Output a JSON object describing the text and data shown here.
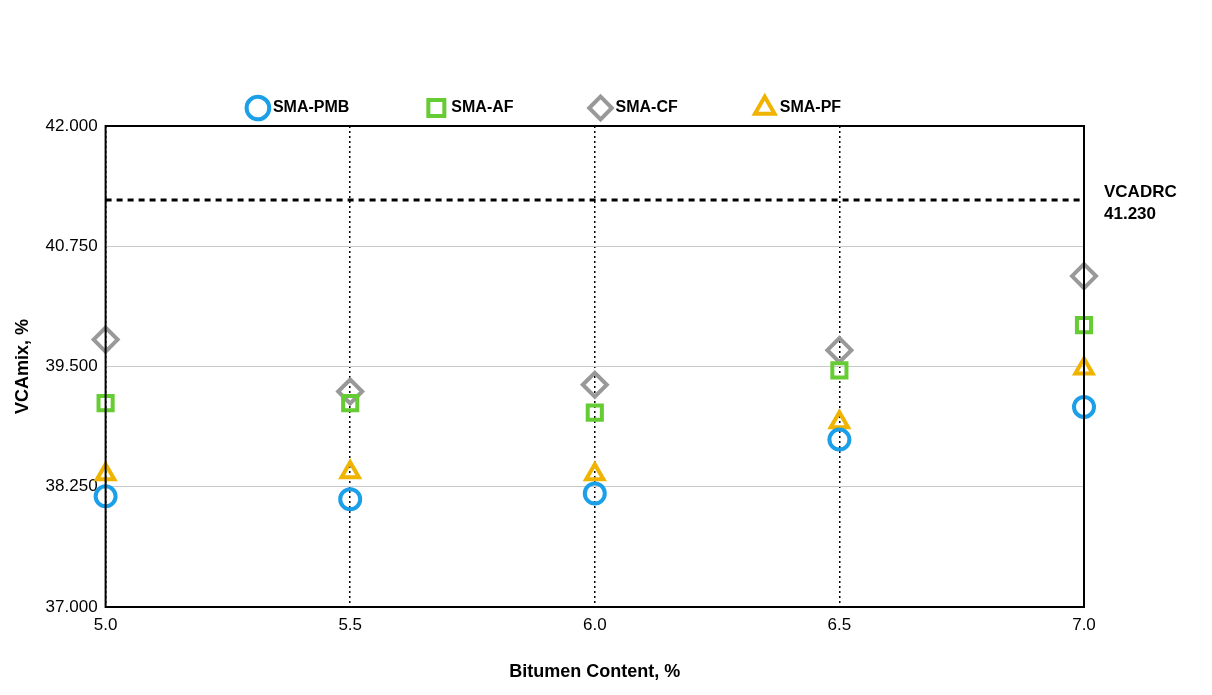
{
  "chart_data": {
    "type": "scatter",
    "xlabel": "Bitumen Content, %",
    "ylabel": "VCAmix, %",
    "x": [
      5.0,
      5.5,
      6.0,
      6.5,
      7.0
    ],
    "series": [
      {
        "name": "SMA-PMB",
        "color": "#1a9fe8",
        "marker": "circle",
        "values": [
          38.15,
          38.12,
          38.18,
          38.74,
          39.08
        ]
      },
      {
        "name": "SMA-AF",
        "color": "#66cc33",
        "marker": "square",
        "values": [
          39.12,
          39.12,
          39.02,
          39.46,
          39.93
        ]
      },
      {
        "name": "SMA-CF",
        "color": "#999999",
        "marker": "diamond",
        "values": [
          39.78,
          39.24,
          39.31,
          39.67,
          40.44
        ]
      },
      {
        "name": "SMA-PF",
        "color": "#f0b400",
        "marker": "triangle",
        "values": [
          38.38,
          38.4,
          38.38,
          38.92,
          39.48
        ]
      }
    ],
    "xlim": [
      5.0,
      7.0
    ],
    "xticks": [
      {
        "value": 5,
        "label": "5.0"
      },
      {
        "value": 5.5,
        "label": "5.5"
      },
      {
        "value": 6,
        "label": "6.0"
      },
      {
        "value": 6.5,
        "label": "6.5"
      },
      {
        "value": 7,
        "label": "7.0"
      }
    ],
    "ylim": [
      37,
      42
    ],
    "yticks": [
      {
        "value": 37,
        "label": "37.000"
      },
      {
        "value": 38.25,
        "label": "38.250"
      },
      {
        "value": 39.5,
        "label": "39.500"
      },
      {
        "value": 40.75,
        "label": "40.750"
      },
      {
        "value": 42,
        "label": "42.000"
      }
    ],
    "ref_lines": [
      {
        "axis": "y",
        "value": 41.23,
        "label": "VCADRC 41.230",
        "color": "#000000",
        "line_style": "dashed"
      }
    ],
    "grid": true,
    "legend": "top"
  }
}
